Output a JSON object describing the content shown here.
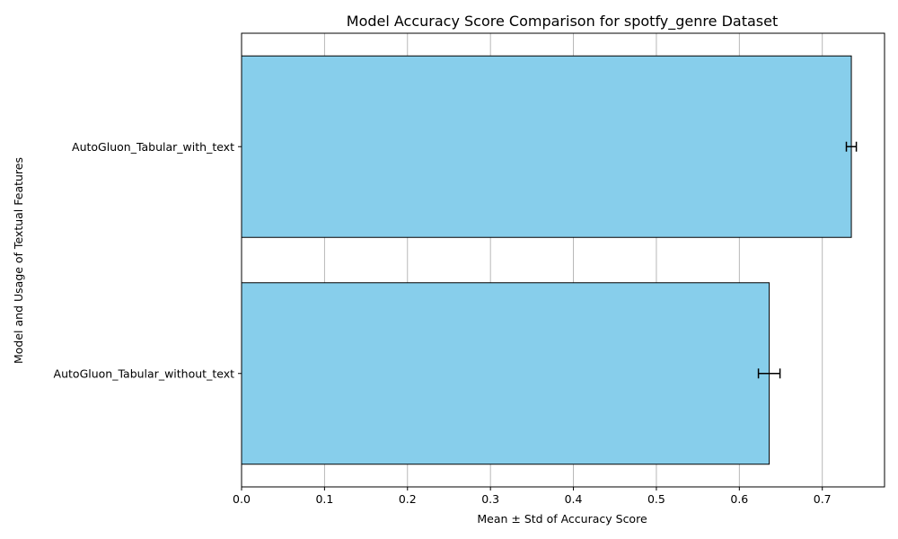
{
  "chart_data": {
    "type": "bar",
    "orientation": "horizontal",
    "title": "Model Accuracy Score Comparison for spotfy_genre Dataset",
    "xlabel": "Mean ± Std of Accuracy Score",
    "ylabel": "Model and Usage of Textual Features",
    "categories": [
      "AutoGluon_Tabular_with_text",
      "AutoGluon_Tabular_without_text"
    ],
    "values": [
      0.735,
      0.636
    ],
    "errors": [
      0.006,
      0.013
    ],
    "xlim": [
      0,
      0.775
    ],
    "xticks": [
      "0.0",
      "0.1",
      "0.2",
      "0.3",
      "0.4",
      "0.5",
      "0.6",
      "0.7"
    ],
    "grid": "vertical",
    "bar_color": "#87CEEB",
    "edge_color": "#000000",
    "grid_color": "#b0b0b0"
  }
}
